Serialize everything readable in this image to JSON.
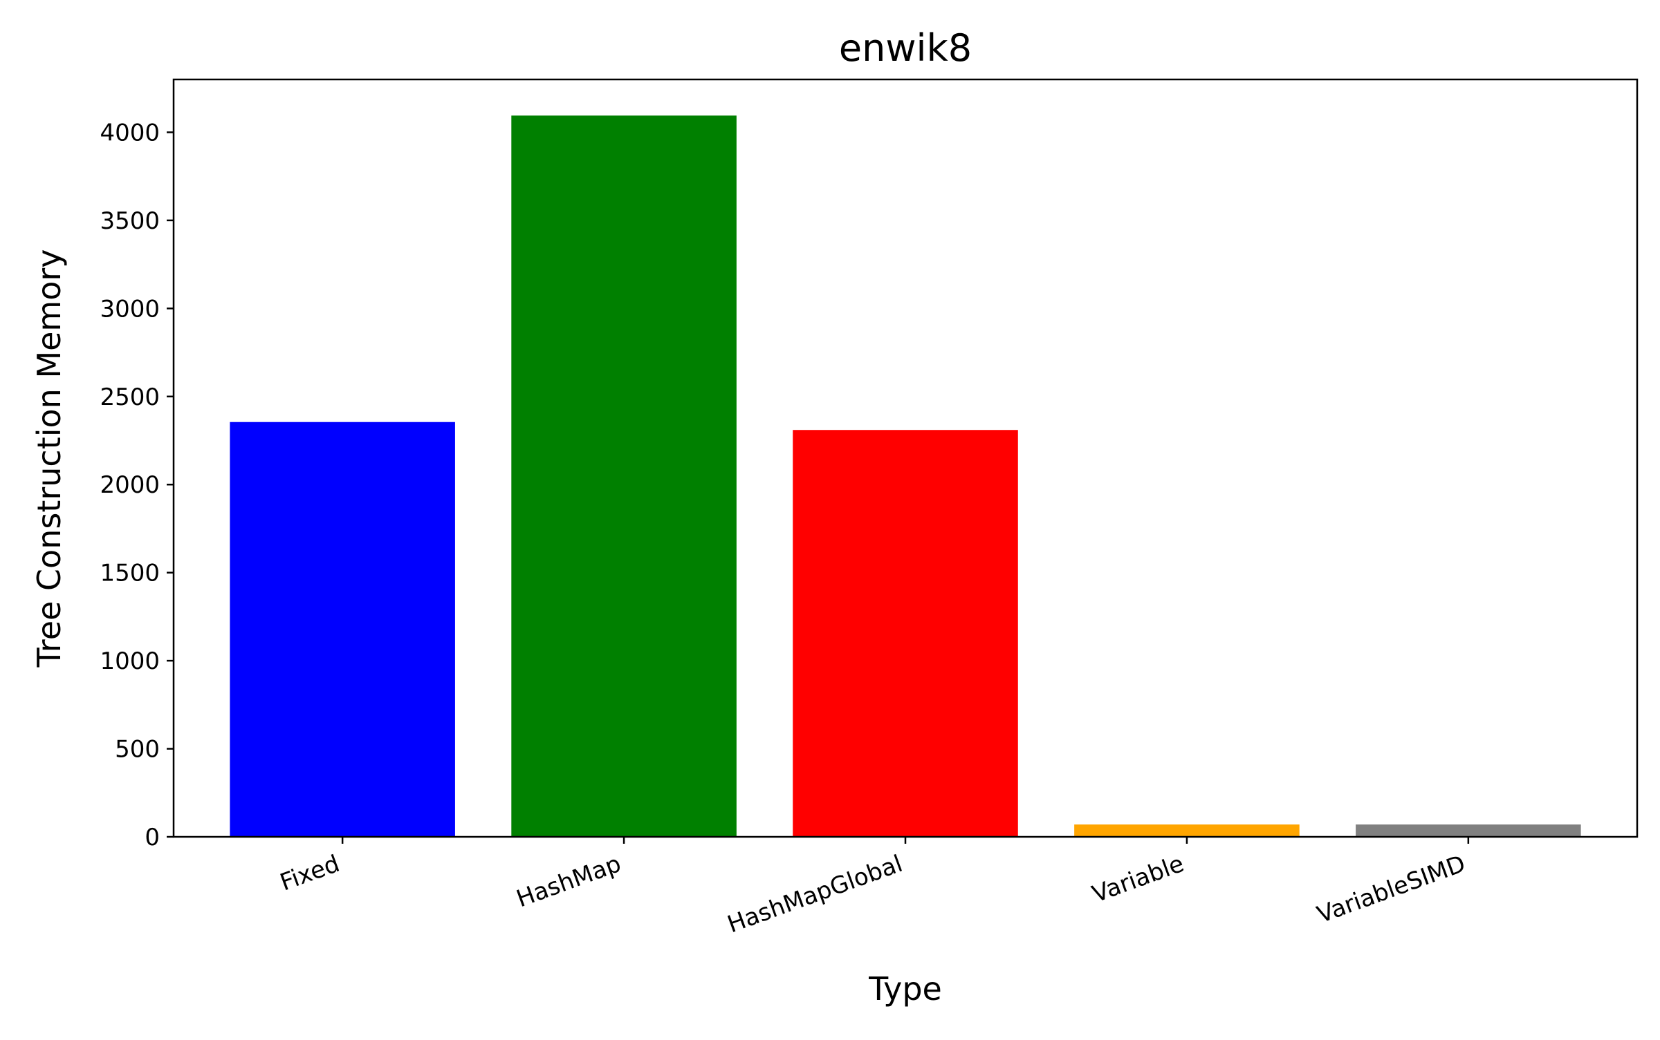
{
  "chart_data": {
    "type": "bar",
    "title": "enwik8",
    "xlabel": "Type",
    "ylabel": "Tree Construction Memory",
    "categories": [
      "Fixed",
      "HashMap",
      "HashMapGlobal",
      "Variable",
      "VariableSIMD"
    ],
    "values": [
      2355,
      4095,
      2310,
      70,
      70
    ],
    "colors": [
      "#0000ff",
      "#008000",
      "#ff0000",
      "#ffa500",
      "#808080"
    ],
    "ylim": [
      0,
      4300
    ],
    "yticks": [
      0,
      500,
      1000,
      1500,
      2000,
      2500,
      3000,
      3500,
      4000
    ],
    "ytick_labels": [
      "0",
      "500",
      "1000",
      "1500",
      "2000",
      "2500",
      "3000",
      "3500",
      "4000"
    ],
    "xtick_rotation_deg": 20,
    "grid": false,
    "legend": false
  }
}
